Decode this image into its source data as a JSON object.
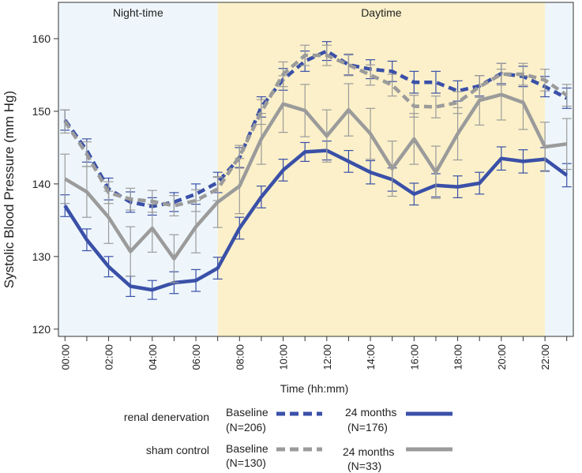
{
  "chart_data": {
    "type": "line",
    "ylabel": "Systolic Blood Pressure (mm Hg)",
    "xlabel": "Time (hh:mm)",
    "ylim": [
      119,
      165
    ],
    "xlim": [
      -0.3,
      23.3
    ],
    "yticks": [
      120,
      130,
      140,
      150,
      160
    ],
    "x_tick_labels": [
      "00:00",
      "02:00",
      "04:00",
      "06:00",
      "08:00",
      "10:00",
      "12:00",
      "14:00",
      "16:00",
      "18:00",
      "20:00",
      "22:00"
    ],
    "regions": [
      {
        "label": "Night-time",
        "start": -0.3,
        "end": 7.0,
        "color": "#eef6fb"
      },
      {
        "label": "Daytime",
        "start": 7.0,
        "end": 22.0,
        "color": "#fbf0c9"
      },
      {
        "label": "",
        "start": 22.0,
        "end": 23.3,
        "color": "#eef6fb"
      }
    ],
    "series": [
      {
        "name": "renal denervation Baseline (N=206)",
        "color": "#3a50a8",
        "dash": true,
        "x": [
          0,
          1,
          2,
          3,
          4,
          5,
          6,
          7,
          8,
          9,
          10,
          11,
          12,
          13,
          14,
          15,
          16,
          17,
          18,
          19,
          20,
          21,
          22,
          23
        ],
        "values": [
          148.8,
          144.6,
          139.3,
          137.5,
          136.9,
          137.5,
          138.6,
          140.2,
          143.6,
          150.6,
          154.4,
          156.9,
          158.3,
          156.4,
          155.8,
          155.5,
          154.0,
          154.0,
          152.8,
          153.5,
          155.2,
          154.8,
          153.4,
          151.8
        ],
        "errors": [
          1.4,
          1.6,
          1.5,
          1.4,
          1.2,
          1.3,
          1.4,
          1.4,
          1.4,
          1.4,
          1.5,
          1.4,
          1.3,
          1.4,
          1.3,
          1.4,
          1.5,
          1.5,
          1.4,
          1.4,
          1.4,
          1.4,
          1.4,
          1.4
        ]
      },
      {
        "name": "renal denervation 24 months (N=176)",
        "color": "#3a50a8",
        "dash": false,
        "x": [
          0,
          1,
          2,
          3,
          4,
          5,
          6,
          7,
          8,
          9,
          10,
          11,
          12,
          13,
          14,
          15,
          16,
          17,
          18,
          19,
          20,
          21,
          22,
          23
        ],
        "values": [
          137.0,
          132.3,
          128.6,
          125.9,
          125.4,
          126.4,
          126.7,
          128.4,
          133.9,
          138.2,
          141.9,
          144.4,
          144.6,
          143.1,
          141.6,
          140.6,
          138.6,
          139.8,
          139.6,
          140.1,
          143.5,
          143.1,
          143.4,
          141.2
        ],
        "errors": [
          1.5,
          1.5,
          1.4,
          1.4,
          1.3,
          1.5,
          1.5,
          1.5,
          1.5,
          1.5,
          1.5,
          1.3,
          1.3,
          1.5,
          1.6,
          1.6,
          1.5,
          1.6,
          1.5,
          1.5,
          1.6,
          1.6,
          1.6,
          1.6
        ]
      },
      {
        "name": "sham control Baseline (N=130)",
        "color": "#9b9b9b",
        "dash": true,
        "x": [
          0,
          1,
          2,
          3,
          4,
          5,
          6,
          7,
          8,
          9,
          10,
          11,
          12,
          13,
          14,
          15,
          16,
          17,
          18,
          19,
          20,
          21,
          22,
          23
        ],
        "values": [
          148.6,
          144.1,
          138.8,
          137.9,
          137.6,
          137.0,
          137.7,
          139.3,
          143.8,
          149.9,
          155.1,
          157.7,
          157.7,
          156.4,
          155.0,
          153.6,
          150.7,
          150.6,
          151.2,
          153.4,
          155.1,
          155.1,
          154.3,
          152.2
        ],
        "errors": [
          1.6,
          1.7,
          1.5,
          1.5,
          1.5,
          1.4,
          1.5,
          1.6,
          1.5,
          1.7,
          1.7,
          1.4,
          1.4,
          1.5,
          1.4,
          1.5,
          1.5,
          1.5,
          1.5,
          1.5,
          1.5,
          1.5,
          1.5,
          1.5
        ]
      },
      {
        "name": "sham control 24 months (N=33)",
        "color": "#9b9b9b",
        "dash": false,
        "x": [
          0,
          1,
          2,
          3,
          4,
          5,
          6,
          7,
          8,
          9,
          10,
          11,
          12,
          13,
          14,
          15,
          16,
          17,
          18,
          19,
          20,
          21,
          22,
          23
        ],
        "values": [
          140.7,
          138.9,
          135.4,
          130.7,
          133.9,
          129.7,
          134.1,
          137.5,
          139.7,
          146.2,
          151.0,
          150.1,
          146.6,
          150.2,
          146.9,
          142.1,
          146.2,
          141.6,
          146.9,
          151.5,
          152.3,
          151.2,
          145.1,
          145.5
        ],
        "errors": [
          3.4,
          3.5,
          3.6,
          3.4,
          3.3,
          3.3,
          3.6,
          3.5,
          3.8,
          3.5,
          3.9,
          3.6,
          3.6,
          3.6,
          3.5,
          3.8,
          3.5,
          3.6,
          3.6,
          3.4,
          3.5,
          3.7,
          3.4,
          3.5
        ]
      }
    ]
  },
  "legend": {
    "groups": [
      {
        "label": "renal denervation",
        "baseline_label": "Baseline",
        "baseline_n": "(N=206)",
        "followup_label": "24 months",
        "followup_n": "(N=176)",
        "color": "#3a50a8"
      },
      {
        "label": "sham control",
        "baseline_label": "Baseline",
        "baseline_n": "(N=130)",
        "followup_label": "24 months",
        "followup_n": "(N=33)",
        "color": "#9b9b9b"
      }
    ]
  }
}
